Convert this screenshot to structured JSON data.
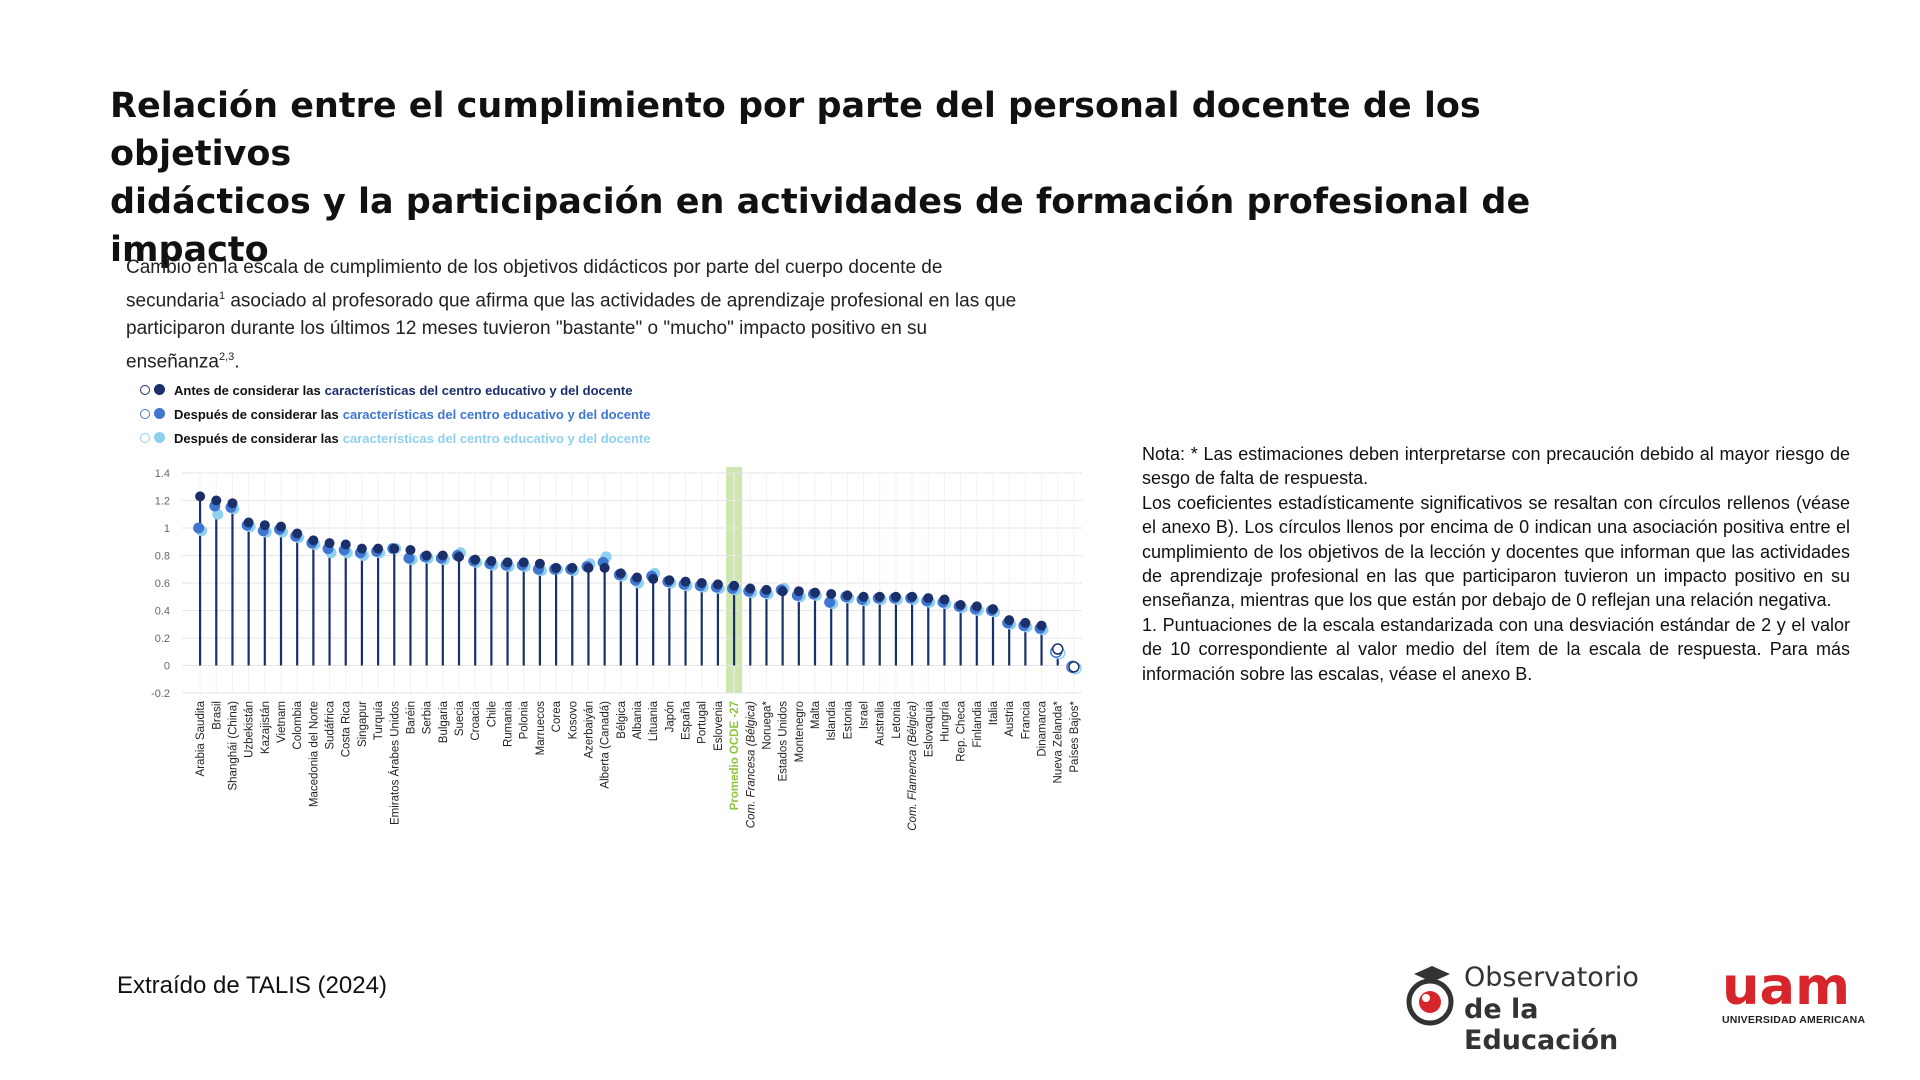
{
  "slide": {
    "title_line1": "Relación entre el cumplimiento por parte del personal docente de los objetivos",
    "title_line2": "didácticos y la participación en actividades de formación profesional de impacto",
    "source": "Extraído de TALIS (2024)"
  },
  "note": {
    "p1": "Nota: * Las estimaciones deben interpretarse con precaución debido al mayor riesgo de sesgo de falta de respuesta.",
    "p2": "Los coeficientes estadísticamente significativos se resaltan con círculos rellenos (véase el anexo B). Los círculos llenos por encima de 0 indican una asociación positiva entre el cumplimiento de los objetivos de la lección y docentes que informan que las actividades de aprendizaje profesional en las que participaron tuvieron un impacto positivo en su enseñanza, mientras que los que están por debajo de 0 reflejan una relación negativa.",
    "p3": "1. Puntuaciones de la escala estandarizada con una desviación estándar de 2 y el valor de 10 correspondiente al valor medio del ítem de la escala de respuesta. Para más información sobre las escalas, véase el anexo B."
  },
  "logos": {
    "observatorio_line1": "Observatorio",
    "observatorio_line2": "de la Educación",
    "uam_mark": "uam",
    "uam_name": "UNIVERSIDAD AMERICANA"
  },
  "colors": {
    "dark_navy": "#1b2f6b",
    "mid_blue": "#3f76d0",
    "light_blue": "#8fd0ef",
    "oecd_highlight": "#cfe6b0",
    "oecd_label": "#8cc63f"
  },
  "chart_data": {
    "type": "scatter",
    "caption_part1": "Cambio en la escala de cumplimiento de los objetivos didácticos por parte del cuerpo docente de secundaria",
    "caption_sup1": "1",
    "caption_part2": " asociado al profesorado que afirma que las actividades de aprendizaje profesional en las que participaron durante los últimos 12 meses tuvieron \"bastante\" o \"mucho\" impacto positivo en su enseñanza",
    "caption_sup2": "2,3",
    "caption_end": ".",
    "legend": [
      {
        "prefix": "Antes de considerar las",
        "highlight": "características del centro educativo y del docente"
      },
      {
        "prefix": "Después de considerar las",
        "highlight": "características del centro educativo y del docente"
      },
      {
        "prefix": "Después de considerar las",
        "highlight": "características del centro educativo y del docente"
      }
    ],
    "ylim": [
      -0.2,
      1.4
    ],
    "yticks": [
      "1.4",
      "1.2",
      "1",
      "0.8",
      "0.6",
      "0.4",
      "0.2",
      "0",
      "-0.2"
    ],
    "grid": true,
    "highlight_category": "Promedio OCDE -27",
    "categories": [
      "Arabia Saudita",
      "Brasil",
      "Shanghái (China)",
      "Uzbekistán",
      "Kazajistán",
      "Vietnam",
      "Colombia",
      "Macedonia del Norte",
      "Sudáfrica",
      "Costa Rica",
      "Singapur",
      "Turquía",
      "Emiratos Árabes Unidos",
      "Baréin",
      "Serbia",
      "Bulgaria",
      "Suecia",
      "Croacia",
      "Chile",
      "Rumania",
      "Polonia",
      "Marruecos",
      "Corea",
      "Kosovo",
      "Azerbaiyán",
      "Alberta (Canadá)",
      "Bélgica",
      "Albania",
      "Lituania",
      "Japón",
      "España",
      "Portugal",
      "Eslovenia",
      "Promedio OCDE -27",
      "Com. Francesa (Bélgica)",
      "Noruega*",
      "Estados Unidos",
      "Montenegro",
      "Malta",
      "Islandia",
      "Estonia",
      "Israel",
      "Australia",
      "Letonia",
      "Com. Flamenca (Bélgica)",
      "Eslovaquia",
      "Hungría",
      "Rep. Checa",
      "Finlandia",
      "Italia",
      "Austria",
      "Francia",
      "Dinamarca",
      "Nueva Zelanda*",
      "Países Bajos*"
    ],
    "italic_categories": [
      "Com. Francesa (Bélgica)",
      "Com. Flamenca (Bélgica)"
    ],
    "series": [
      {
        "values": [
          1.23,
          1.2,
          1.18,
          1.04,
          1.02,
          1.01,
          0.96,
          0.91,
          0.89,
          0.88,
          0.85,
          0.85,
          0.85,
          0.84,
          0.8,
          0.8,
          0.79,
          0.77,
          0.76,
          0.75,
          0.75,
          0.74,
          0.71,
          0.71,
          0.71,
          0.71,
          0.67,
          0.64,
          0.63,
          0.62,
          0.61,
          0.6,
          0.59,
          0.58,
          0.56,
          0.55,
          0.54,
          0.54,
          0.53,
          0.52,
          0.51,
          0.5,
          0.5,
          0.5,
          0.5,
          0.49,
          0.48,
          0.44,
          0.43,
          0.41,
          0.33,
          0.31,
          0.29,
          0.12,
          -0.01
        ],
        "filled": [
          true,
          true,
          true,
          true,
          true,
          true,
          true,
          true,
          true,
          true,
          true,
          true,
          true,
          true,
          true,
          true,
          true,
          true,
          true,
          true,
          true,
          true,
          true,
          true,
          true,
          true,
          true,
          true,
          true,
          true,
          true,
          true,
          true,
          true,
          true,
          true,
          true,
          true,
          true,
          true,
          true,
          true,
          true,
          true,
          true,
          true,
          true,
          true,
          true,
          true,
          true,
          true,
          true,
          false,
          false
        ]
      },
      {
        "values": [
          1.0,
          1.16,
          1.15,
          1.02,
          0.98,
          0.99,
          0.94,
          0.89,
          0.85,
          0.84,
          0.82,
          0.83,
          0.85,
          0.78,
          0.79,
          0.78,
          0.8,
          0.76,
          0.74,
          0.73,
          0.73,
          0.7,
          0.7,
          0.7,
          0.72,
          0.75,
          0.66,
          0.62,
          0.65,
          0.61,
          0.59,
          0.58,
          0.57,
          0.56,
          0.54,
          0.53,
          0.55,
          0.51,
          0.52,
          0.46,
          0.5,
          0.48,
          0.49,
          0.49,
          0.49,
          0.47,
          0.46,
          0.43,
          0.41,
          0.4,
          0.31,
          0.29,
          0.27,
          0.1,
          -0.01
        ],
        "filled": [
          true,
          true,
          true,
          true,
          true,
          true,
          true,
          true,
          true,
          true,
          true,
          true,
          true,
          true,
          true,
          true,
          true,
          true,
          true,
          true,
          true,
          true,
          true,
          true,
          true,
          true,
          true,
          true,
          true,
          true,
          true,
          true,
          true,
          true,
          true,
          true,
          true,
          true,
          true,
          true,
          true,
          true,
          true,
          true,
          true,
          true,
          true,
          true,
          true,
          true,
          true,
          true,
          true,
          false,
          false
        ]
      },
      {
        "values": [
          0.98,
          1.1,
          1.14,
          1.01,
          0.97,
          0.97,
          0.93,
          0.88,
          0.82,
          0.82,
          0.8,
          0.82,
          0.85,
          0.77,
          0.78,
          0.77,
          0.82,
          0.75,
          0.73,
          0.72,
          0.72,
          0.69,
          0.7,
          0.69,
          0.74,
          0.79,
          0.65,
          0.6,
          0.67,
          0.6,
          0.58,
          0.57,
          0.56,
          0.55,
          0.53,
          0.52,
          0.56,
          0.5,
          0.51,
          0.45,
          0.49,
          0.47,
          0.48,
          0.48,
          0.48,
          0.46,
          0.45,
          0.42,
          0.4,
          0.39,
          0.3,
          0.28,
          0.26,
          0.09,
          -0.02
        ],
        "filled": [
          true,
          true,
          true,
          true,
          true,
          true,
          true,
          true,
          true,
          true,
          true,
          true,
          true,
          true,
          true,
          true,
          true,
          true,
          true,
          true,
          true,
          true,
          true,
          true,
          true,
          true,
          true,
          true,
          true,
          true,
          true,
          true,
          true,
          true,
          true,
          true,
          true,
          true,
          true,
          true,
          true,
          true,
          true,
          true,
          true,
          true,
          true,
          true,
          true,
          true,
          true,
          true,
          true,
          false,
          false
        ]
      }
    ]
  }
}
